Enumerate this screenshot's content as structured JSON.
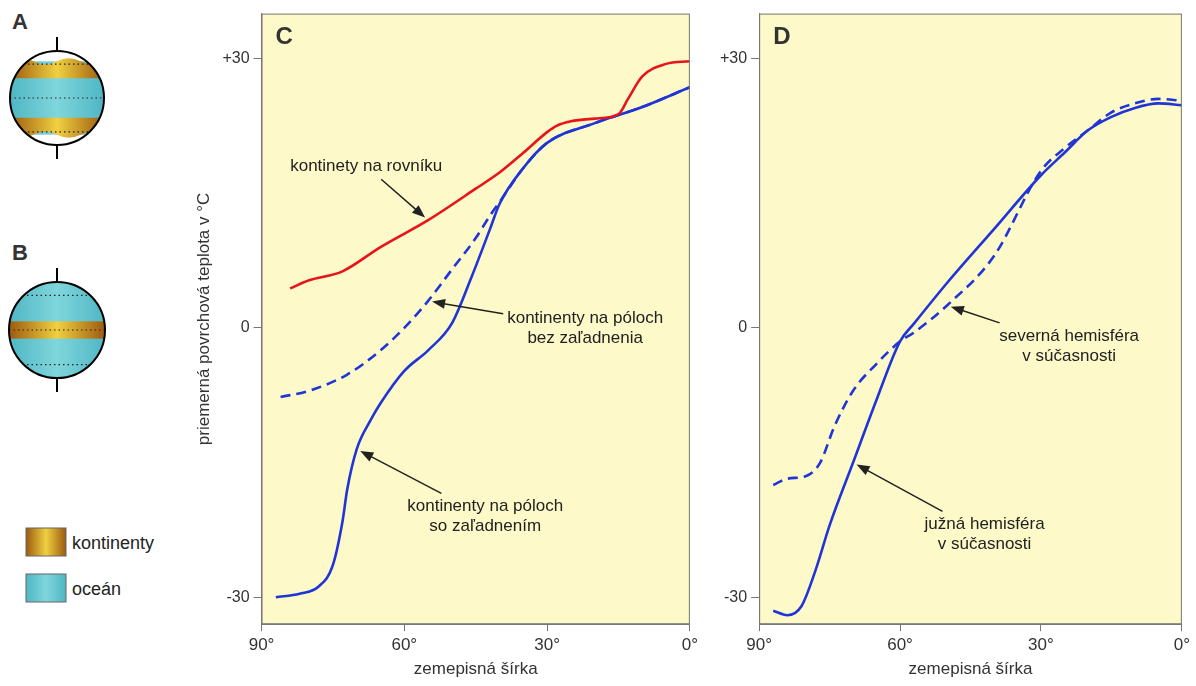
{
  "diagrams": [
    {
      "letter": "A"
    },
    {
      "letter": "B"
    }
  ],
  "map_key": [
    {
      "label": "kontinenty",
      "color": "#f0d040"
    },
    {
      "label": "oceán",
      "color": "#7fd6dc"
    }
  ],
  "chart_data": [
    {
      "letter": "C",
      "type": "line",
      "ylabel": "priemerná povrchová teplota v °C",
      "xlabel": "zemepisná šírka",
      "xlim": [
        90,
        0
      ],
      "xticks": [
        {
          "value": 90,
          "label": "90°"
        },
        {
          "value": 60,
          "label": "60°"
        },
        {
          "value": 30,
          "label": "30°"
        },
        {
          "value": 0,
          "label": "0°"
        }
      ],
      "ylim": [
        -33,
        35
      ],
      "yticks": [
        -30,
        0,
        {
          "value": 30,
          "label": "+30"
        }
      ],
      "grid": false,
      "series": [
        {
          "name": "kontinety na rovníku",
          "color": "#e8141b",
          "line_style": "solid",
          "x": [
            84,
            80,
            73,
            65,
            55,
            45,
            40,
            35,
            30,
            28,
            25,
            20,
            15,
            13,
            10,
            5,
            0
          ],
          "values": [
            4.4,
            5.3,
            6.3,
            9,
            12,
            15.5,
            17.3,
            19.5,
            21.8,
            22.5,
            23,
            23.3,
            23.8,
            25.5,
            28,
            29.4,
            29.7
          ]
        },
        {
          "name": "kontinenty na póloch bez zaľadnenia",
          "color": "#1f35d6",
          "line_style": "dashed",
          "x": [
            86,
            80,
            72,
            65,
            60,
            55,
            50,
            45,
            42,
            40,
            35,
            30,
            20,
            10,
            0
          ],
          "values": [
            -7.7,
            -7,
            -5.2,
            -2.5,
            0,
            3,
            6.5,
            10,
            12.5,
            14,
            17.8,
            20.6,
            22.8,
            24.6,
            26.8
          ]
        },
        {
          "name": "kontinenty na póloch so zaľadnením",
          "color": "#1f35d6",
          "line_style": "solid",
          "x": [
            87,
            82,
            78,
            75,
            73,
            72,
            70,
            67,
            65,
            60,
            55,
            50,
            46,
            42,
            40,
            35,
            30,
            20,
            10,
            0
          ],
          "values": [
            -30,
            -29.6,
            -28.8,
            -26.4,
            -21.6,
            -18,
            -13.5,
            -10.2,
            -8.4,
            -4.8,
            -2.5,
            0.5,
            5.5,
            11,
            13.8,
            17.8,
            20.6,
            22.8,
            24.6,
            26.8
          ]
        }
      ]
    },
    {
      "letter": "D",
      "type": "line",
      "xlabel": "zemepisná šírka",
      "xlim": [
        90,
        0
      ],
      "xticks": [
        {
          "value": 90,
          "label": "90°"
        },
        {
          "value": 60,
          "label": "60°"
        },
        {
          "value": 30,
          "label": "30°"
        },
        {
          "value": 0,
          "label": "0°"
        }
      ],
      "ylim": [
        -33,
        35
      ],
      "yticks": [
        -30,
        0,
        {
          "value": 30,
          "label": "+30"
        }
      ],
      "grid": false,
      "series": [
        {
          "name": "severná hemisféra v súčasnosti",
          "color": "#1f35d6",
          "line_style": "dashed",
          "x": [
            87,
            84,
            80,
            77,
            74,
            70,
            65,
            60,
            57,
            50,
            40,
            30,
            25,
            20,
            15,
            10,
            5,
            0
          ],
          "values": [
            -17.5,
            -16.8,
            -16.5,
            -15,
            -11,
            -7,
            -4,
            -1.5,
            -0.5,
            2.5,
            8,
            17.5,
            20,
            22,
            24,
            25,
            25.5,
            25.3
          ]
        },
        {
          "name": "južná hemisféra v súčasnosti",
          "color": "#1f35d6",
          "line_style": "solid",
          "x": [
            87,
            84,
            81,
            78,
            75,
            70,
            65,
            60,
            57,
            50,
            40,
            30,
            25,
            20,
            15,
            10,
            5,
            0
          ],
          "values": [
            -31.5,
            -32,
            -31,
            -27,
            -22,
            -15,
            -8,
            -1.5,
            0.5,
            5,
            11,
            17,
            19.5,
            22,
            23.5,
            24.5,
            25,
            24.8
          ]
        }
      ]
    }
  ]
}
